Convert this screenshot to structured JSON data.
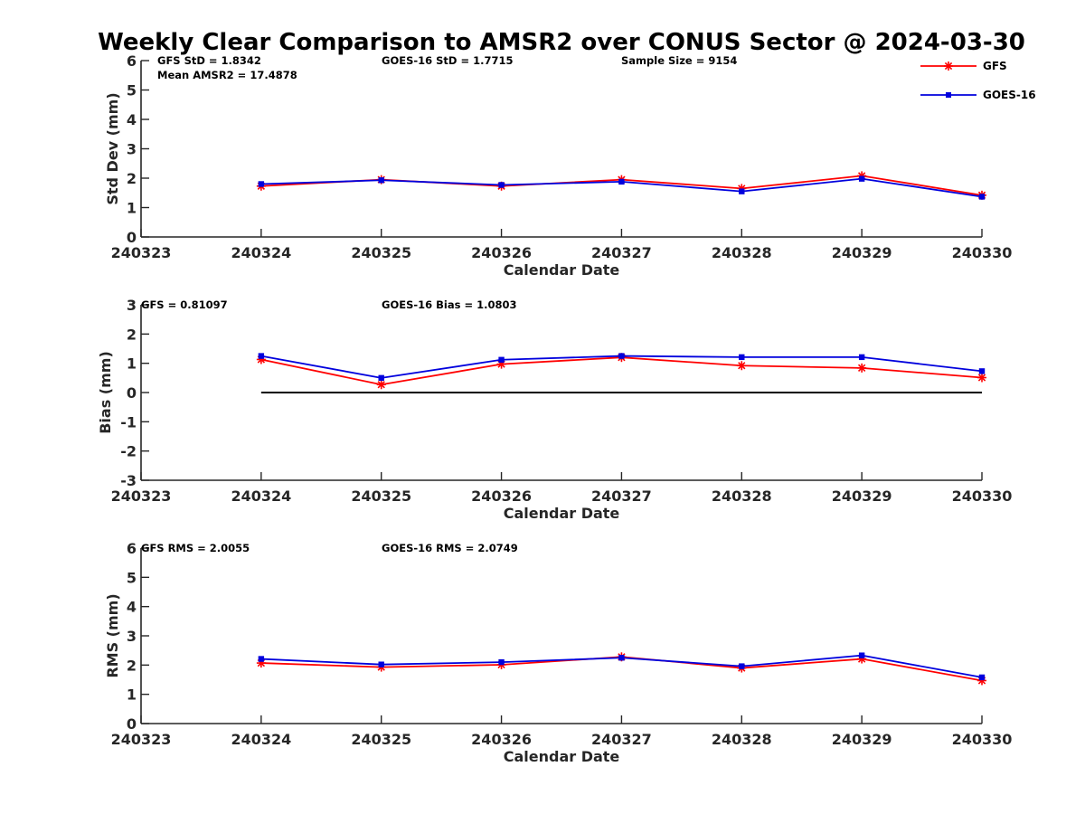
{
  "title": "Weekly Clear Comparison to AMSR2 over CONUS Sector @ 2024-03-30",
  "colors": {
    "gfs": "#ff0000",
    "goes": "#0000dd",
    "zero_line": "#000000",
    "axis": "#262626"
  },
  "legend": {
    "position": "top-right",
    "items": [
      {
        "label": "GFS",
        "marker": "asterisk"
      },
      {
        "label": "GOES-16",
        "marker": "square"
      }
    ]
  },
  "chart_data": [
    {
      "type": "line",
      "ylabel": "Std Dev (mm)",
      "xlabel": "Calendar Date",
      "x_ticks": [
        "240323",
        "240324",
        "240325",
        "240326",
        "240327",
        "240328",
        "240329",
        "240330"
      ],
      "ylim": [
        0,
        6
      ],
      "y_ticks": [
        "0",
        "1",
        "2",
        "3",
        "4",
        "5",
        "6"
      ],
      "annotations": {
        "a1": "GFS StD = 1.8342",
        "a2": "GOES-16 StD = 1.7715",
        "a3": "Sample Size = 9154",
        "a4": "Mean AMSR2 = 17.4878"
      },
      "zero_line": false,
      "series": [
        {
          "name": "GFS",
          "x": [
            "240324",
            "240325",
            "240326",
            "240327",
            "240328",
            "240329",
            "240330"
          ],
          "values": [
            1.73,
            1.95,
            1.73,
            1.95,
            1.65,
            2.08,
            1.42
          ]
        },
        {
          "name": "GOES-16",
          "x": [
            "240324",
            "240325",
            "240326",
            "240327",
            "240328",
            "240329",
            "240330"
          ],
          "values": [
            1.8,
            1.93,
            1.77,
            1.88,
            1.55,
            1.98,
            1.37
          ]
        }
      ]
    },
    {
      "type": "line",
      "ylabel": "Bias (mm)",
      "xlabel": "Calendar Date",
      "x_ticks": [
        "240323",
        "240324",
        "240325",
        "240326",
        "240327",
        "240328",
        "240329",
        "240330"
      ],
      "ylim": [
        -3,
        3
      ],
      "y_ticks": [
        "-3",
        "-2",
        "-1",
        "0",
        "1",
        "2",
        "3"
      ],
      "annotations": {
        "a1": "GFS = 0.81097",
        "a2": "GOES-16 Bias  = 1.0803"
      },
      "zero_line": true,
      "series": [
        {
          "name": "GFS",
          "x": [
            "240324",
            "240325",
            "240326",
            "240327",
            "240328",
            "240329",
            "240330"
          ],
          "values": [
            1.13,
            0.27,
            0.97,
            1.2,
            0.92,
            0.84,
            0.51
          ]
        },
        {
          "name": "GOES-16",
          "x": [
            "240324",
            "240325",
            "240326",
            "240327",
            "240328",
            "240329",
            "240330"
          ],
          "values": [
            1.25,
            0.5,
            1.12,
            1.25,
            1.21,
            1.21,
            0.73
          ]
        }
      ]
    },
    {
      "type": "line",
      "ylabel": "RMS (mm)",
      "xlabel": "Calendar Date",
      "x_ticks": [
        "240323",
        "240324",
        "240325",
        "240326",
        "240327",
        "240328",
        "240329",
        "240330"
      ],
      "ylim": [
        0,
        6
      ],
      "y_ticks": [
        "0",
        "1",
        "2",
        "3",
        "4",
        "5",
        "6"
      ],
      "annotations": {
        "a1": "GFS RMS = 2.0055",
        "a2": "GOES-16 RMS = 2.0749"
      },
      "zero_line": false,
      "series": [
        {
          "name": "GFS",
          "x": [
            "240324",
            "240325",
            "240326",
            "240327",
            "240328",
            "240329",
            "240330"
          ],
          "values": [
            2.07,
            1.93,
            2.01,
            2.28,
            1.9,
            2.21,
            1.47
          ]
        },
        {
          "name": "GOES-16",
          "x": [
            "240324",
            "240325",
            "240326",
            "240327",
            "240328",
            "240329",
            "240330"
          ],
          "values": [
            2.21,
            2.02,
            2.1,
            2.25,
            1.96,
            2.33,
            1.58
          ]
        }
      ]
    }
  ]
}
